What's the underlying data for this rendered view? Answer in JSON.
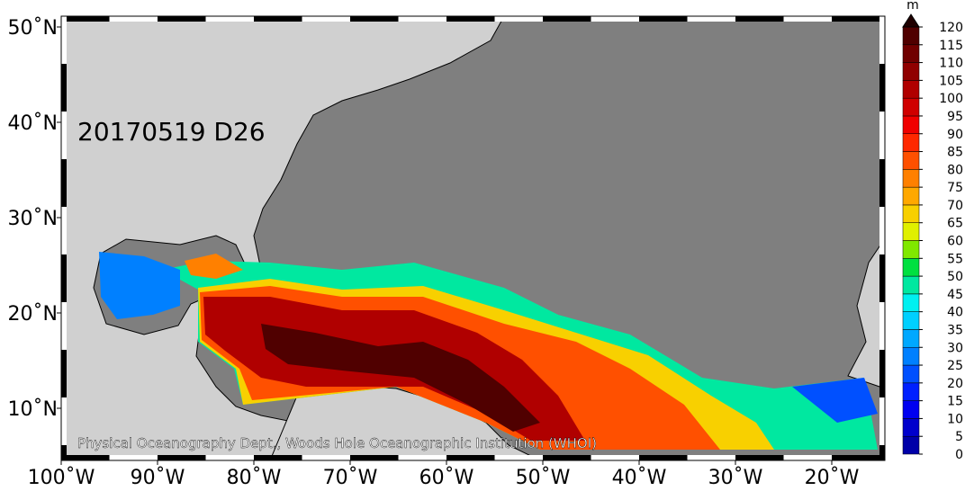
{
  "map": {
    "date_label": "20170519 D26",
    "credit": "Physical Oceanography Dept., Woods Hole Oceanographic Institution (WHOI)",
    "lon_ticks": [
      {
        "value": -100,
        "label": "100˚W"
      },
      {
        "value": -90,
        "label": "90˚W"
      },
      {
        "value": -80,
        "label": "80˚W"
      },
      {
        "value": -70,
        "label": "70˚W"
      },
      {
        "value": -60,
        "label": "60˚W"
      },
      {
        "value": -50,
        "label": "50˚W"
      },
      {
        "value": -40,
        "label": "40˚W"
      },
      {
        "value": -30,
        "label": "30˚W"
      },
      {
        "value": -20,
        "label": "20˚W"
      }
    ],
    "lat_ticks": [
      {
        "value": 50,
        "label": "50˚N"
      },
      {
        "value": 40,
        "label": "40˚N"
      },
      {
        "value": 30,
        "label": "30˚N"
      },
      {
        "value": 20,
        "label": "20˚N"
      },
      {
        "value": 10,
        "label": "10˚N"
      }
    ],
    "colorbar": {
      "unit": "m",
      "ticks": [
        0,
        5,
        10,
        15,
        20,
        25,
        30,
        35,
        40,
        45,
        50,
        55,
        60,
        65,
        70,
        75,
        80,
        85,
        90,
        95,
        100,
        105,
        110,
        115,
        120
      ],
      "colors": [
        "#0000a8",
        "#0000cc",
        "#0000f0",
        "#0020ff",
        "#0050ff",
        "#0080ff",
        "#00a8ff",
        "#00d0ff",
        "#00f0f0",
        "#00e8a0",
        "#00e040",
        "#80e800",
        "#e0f000",
        "#f8d000",
        "#ffa800",
        "#ff8000",
        "#ff5000",
        "#ff2800",
        "#f00000",
        "#d00000",
        "#b00000",
        "#900000",
        "#700000",
        "#500000",
        "#200000"
      ]
    }
  }
}
